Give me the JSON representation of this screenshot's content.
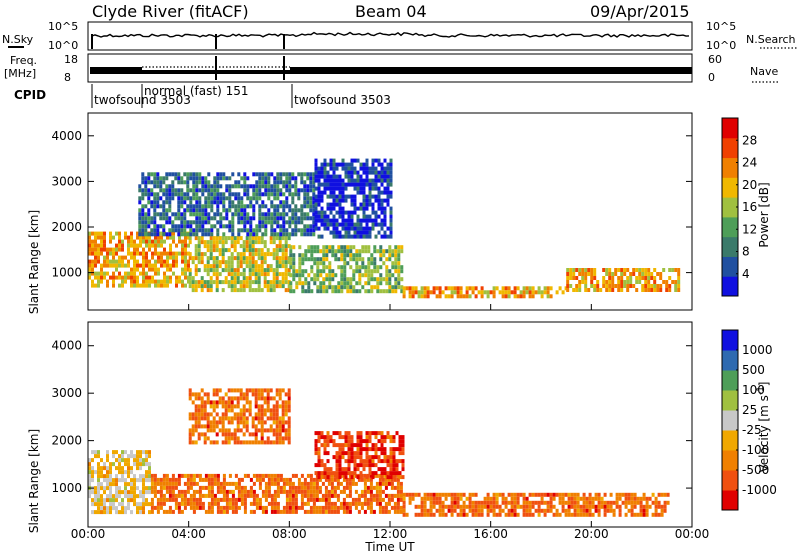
{
  "header": {
    "station": "Clyde River (fitACF)",
    "beam": "Beam 04",
    "date": "09/Apr/2015"
  },
  "strips": {
    "nsky_label": "N.Sky",
    "nsky_ticks": [
      "10^5",
      "10^0"
    ],
    "nsearch_label": "N.Search",
    "freq_label_line1": "Freq.",
    "freq_label_line2": "[MHz]",
    "freq_ticks": [
      "18",
      "8"
    ],
    "nave_label": "Nave",
    "nave_ticks": [
      "60",
      "0"
    ],
    "cpid_label": "CPID",
    "cpid_entries": [
      "twofsound 3503",
      "normal (fast) 151",
      "twofsound 3503"
    ]
  },
  "colors": {
    "power": [
      "#1010e0",
      "#2050a0",
      "#3a7a6a",
      "#4e9e58",
      "#a0c040",
      "#f0b800",
      "#f08000",
      "#f04000",
      "#e00000"
    ],
    "velocity": [
      "#e00000",
      "#f05010",
      "#f08000",
      "#f0a800",
      "#c8c8c8",
      "#a0c040",
      "#4e9e58",
      "#2e6ab0",
      "#1010e0"
    ]
  },
  "chart_data": [
    {
      "type": "heatmap",
      "name": "Power",
      "ylabel": "Slant Range [km]",
      "ylim": [
        180,
        4500
      ],
      "xlim": [
        0,
        24
      ],
      "yticks": [
        1000,
        2000,
        3000,
        4000
      ],
      "xticks": [
        "00:00",
        "04:00",
        "08:00",
        "12:00",
        "16:00",
        "20:00",
        "00:00"
      ],
      "colorbar": {
        "label": "Power [dB]",
        "range": [
          0,
          32
        ],
        "ticks": [
          4,
          8,
          12,
          16,
          20,
          24,
          28
        ]
      },
      "regions": [
        {
          "t": [
            0,
            4
          ],
          "r": [
            700,
            1900
          ],
          "level": 26
        },
        {
          "t": [
            4,
            8
          ],
          "r": [
            600,
            1800
          ],
          "level": 22
        },
        {
          "t": [
            8,
            12.5
          ],
          "r": [
            600,
            1600
          ],
          "level": 20
        },
        {
          "t": [
            12.5,
            19
          ],
          "r": [
            450,
            700
          ],
          "level": 27
        },
        {
          "t": [
            19,
            23.5
          ],
          "r": [
            600,
            1100
          ],
          "level": 28
        },
        {
          "t": [
            2,
            9
          ],
          "r": [
            1800,
            3200
          ],
          "level": 10
        },
        {
          "t": [
            9,
            12
          ],
          "r": [
            1800,
            3500
          ],
          "level": 6
        }
      ]
    },
    {
      "type": "heatmap",
      "name": "Velocity",
      "ylabel": "Slant Range [km]",
      "ylim": [
        180,
        4500
      ],
      "xlim": [
        0,
        24
      ],
      "yticks": [
        1000,
        2000,
        3000,
        4000
      ],
      "xticks": [
        "00:00",
        "04:00",
        "08:00",
        "12:00",
        "16:00",
        "20:00",
        "00:00"
      ],
      "xlabel": "Time UT",
      "colorbar": {
        "label": "Velocity [m s^-1]",
        "ticks": [
          "1000",
          "500",
          "100",
          "25",
          "-25",
          "-100",
          "-500",
          "-1000"
        ]
      },
      "regions": [
        {
          "t": [
            0,
            2.5
          ],
          "r": [
            500,
            1800
          ],
          "level": 0
        },
        {
          "t": [
            2.5,
            12.5
          ],
          "r": [
            500,
            1300
          ],
          "level": -200
        },
        {
          "t": [
            9,
            12.5
          ],
          "r": [
            1200,
            2200
          ],
          "level": -400
        },
        {
          "t": [
            12.5,
            23
          ],
          "r": [
            450,
            900
          ],
          "level": -150
        },
        {
          "t": [
            4,
            8
          ],
          "r": [
            2000,
            3100
          ],
          "level": -100
        }
      ]
    }
  ]
}
